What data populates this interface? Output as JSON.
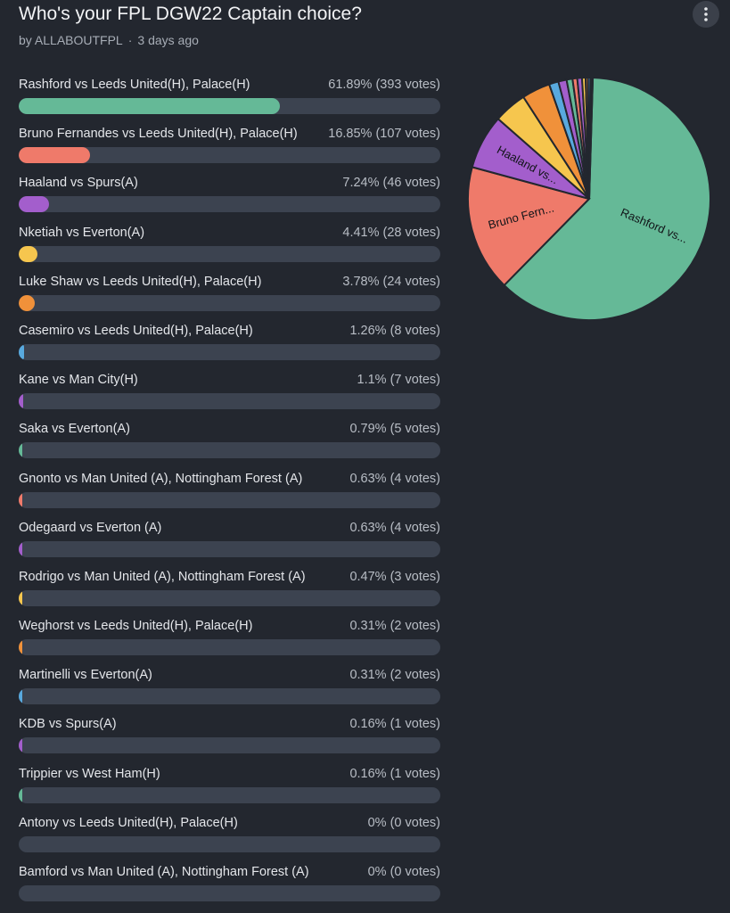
{
  "poll": {
    "title": "Who's your FPL DGW22 Captain choice?",
    "author": "by ALLABOUTFPL",
    "separator": "·",
    "time": "3 days ago",
    "menu_icon": "more-vertical-icon"
  },
  "options": [
    {
      "label": "Rashford vs Leeds United(H), Palace(H)",
      "stat": "61.89% (393 votes)",
      "percent": 61.89,
      "color": "#65b997"
    },
    {
      "label": "Bruno Fernandes vs Leeds United(H), Palace(H)",
      "stat": "16.85% (107 votes)",
      "percent": 16.85,
      "color": "#ef7a6a"
    },
    {
      "label": "Haaland vs Spurs(A)",
      "stat": "7.24% (46 votes)",
      "percent": 7.24,
      "color": "#a35ecc"
    },
    {
      "label": "Nketiah vs Everton(A)",
      "stat": "4.41% (28 votes)",
      "percent": 4.41,
      "color": "#f6c64e"
    },
    {
      "label": "Luke Shaw vs Leeds United(H), Palace(H)",
      "stat": "3.78% (24 votes)",
      "percent": 3.78,
      "color": "#f0913a"
    },
    {
      "label": "Casemiro vs Leeds United(H), Palace(H)",
      "stat": "1.26% (8 votes)",
      "percent": 1.26,
      "color": "#58a9de"
    },
    {
      "label": "Kane vs Man City(H)",
      "stat": "1.1% (7 votes)",
      "percent": 1.1,
      "color": "#a35ecc"
    },
    {
      "label": "Saka vs Everton(A)",
      "stat": "0.79% (5 votes)",
      "percent": 0.79,
      "color": "#65b997"
    },
    {
      "label": "Gnonto vs Man United (A), Nottingham Forest (A)",
      "stat": "0.63% (4 votes)",
      "percent": 0.63,
      "color": "#ef7a6a"
    },
    {
      "label": "Odegaard vs Everton (A)",
      "stat": "0.63% (4 votes)",
      "percent": 0.63,
      "color": "#a35ecc"
    },
    {
      "label": "Rodrigo vs Man United (A), Nottingham Forest (A)",
      "stat": "0.47% (3 votes)",
      "percent": 0.47,
      "color": "#f6c64e"
    },
    {
      "label": "Weghorst vs Leeds United(H), Palace(H)",
      "stat": "0.31% (2 votes)",
      "percent": 0.31,
      "color": "#f0913a"
    },
    {
      "label": "Martinelli vs Everton(A)",
      "stat": "0.31% (2 votes)",
      "percent": 0.31,
      "color": "#58a9de"
    },
    {
      "label": "KDB vs Spurs(A)",
      "stat": "0.16% (1 votes)",
      "percent": 0.16,
      "color": "#a35ecc"
    },
    {
      "label": "Trippier vs West Ham(H)",
      "stat": "0.16% (1 votes)",
      "percent": 0.16,
      "color": "#65b997"
    },
    {
      "label": "Antony vs Leeds United(H), Palace(H)",
      "stat": "0% (0 votes)",
      "percent": 0,
      "color": "#ef7a6a"
    },
    {
      "label": "Bamford vs Man United (A), Nottingham Forest (A)",
      "stat": "0% (0 votes)",
      "percent": 0,
      "color": "#a35ecc"
    }
  ],
  "chart_data": {
    "type": "pie",
    "labels": [
      "Rashford vs...",
      "Bruno Fern...",
      "Haaland vs...",
      "",
      "",
      "",
      "",
      "",
      "",
      "",
      "",
      "",
      "",
      "",
      ""
    ],
    "values": [
      393,
      107,
      46,
      28,
      24,
      8,
      7,
      5,
      4,
      4,
      3,
      2,
      2,
      1,
      1
    ],
    "colors": [
      "#65b997",
      "#ef7a6a",
      "#a35ecc",
      "#f6c64e",
      "#f0913a",
      "#58a9de",
      "#a35ecc",
      "#65b997",
      "#ef7a6a",
      "#a35ecc",
      "#f6c64e",
      "#f0913a",
      "#58a9de",
      "#a35ecc",
      "#65b997"
    ]
  }
}
